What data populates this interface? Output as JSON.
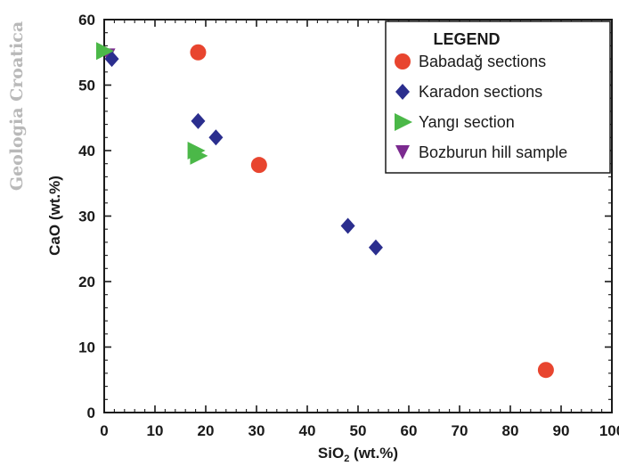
{
  "watermark": "Geologia Croatica",
  "chart_data": {
    "type": "scatter",
    "title": "",
    "xlabel": "SiO",
    "xlabel_sub": "2",
    "xlabel_suffix": " (wt.%)",
    "ylabel": "CaO (wt.%)",
    "xlim": [
      0,
      100
    ],
    "ylim": [
      0,
      60
    ],
    "xticks": [
      0,
      10,
      20,
      30,
      40,
      50,
      60,
      70,
      80,
      90,
      100
    ],
    "yticks": [
      0,
      10,
      20,
      30,
      40,
      50,
      60
    ],
    "grid": false,
    "legend": {
      "title": "LEGEND",
      "position": "top-right"
    },
    "series": [
      {
        "name": "Babadağ sections",
        "marker": "circle",
        "color": "#e8452f",
        "x": [
          18.5,
          30.5,
          87
        ],
        "y": [
          55,
          37.8,
          6.5
        ]
      },
      {
        "name": "Karadon sections",
        "marker": "diamond",
        "color": "#2b2e8e",
        "x": [
          1.5,
          18.5,
          22,
          48,
          53.5
        ],
        "y": [
          54,
          44.5,
          42,
          28.5,
          25.2
        ]
      },
      {
        "name": "Yangı section",
        "marker": "triangle-right",
        "color": "#4bb848",
        "x": [
          0,
          18,
          18.5
        ],
        "y": [
          55.2,
          40,
          39.2
        ]
      },
      {
        "name": "Bozburun hill sample",
        "marker": "triangle-down",
        "color": "#7b2a8f",
        "x": [
          0.8
        ],
        "y": [
          54.5
        ]
      }
    ]
  }
}
